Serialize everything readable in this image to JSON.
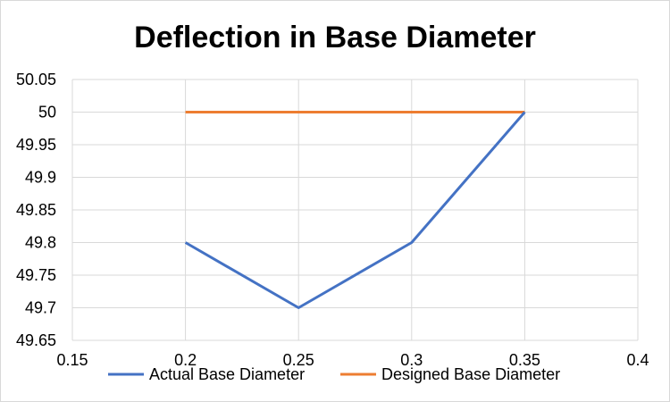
{
  "chart_data": {
    "type": "line",
    "title": "Deflection in Base Diameter",
    "xlabel": "",
    "ylabel": "",
    "xlim": [
      0.15,
      0.4
    ],
    "ylim": [
      49.65,
      50.05
    ],
    "x_ticks": [
      "0.15",
      "0.2",
      "0.25",
      "0.3",
      "0.35",
      "0.4"
    ],
    "y_ticks": [
      "49.65",
      "49.7",
      "49.75",
      "49.8",
      "49.85",
      "49.9",
      "49.95",
      "50",
      "50.05"
    ],
    "grid": true,
    "legend_position": "bottom",
    "series": [
      {
        "name": "Actual Base Diameter",
        "color": "#4472c4",
        "x": [
          0.2,
          0.25,
          0.3,
          0.35
        ],
        "y": [
          49.8,
          49.7,
          49.8,
          50
        ]
      },
      {
        "name": "Designed Base Diameter",
        "color": "#ed7d31",
        "x": [
          0.2,
          0.25,
          0.3,
          0.35
        ],
        "y": [
          50,
          50,
          50,
          50
        ]
      }
    ]
  }
}
